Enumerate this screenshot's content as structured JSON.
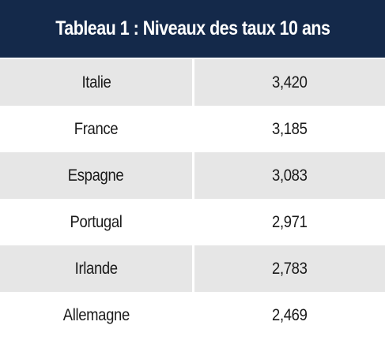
{
  "table": {
    "title": "Tableau 1 : Niveaux des taux 10 ans",
    "colors": {
      "header_bg": "#14294a",
      "header_text": "#ffffff",
      "row_shaded": "#e6e6e6",
      "row_plain": "#ffffff"
    },
    "rows": [
      {
        "country": "Italie",
        "value": "3,420"
      },
      {
        "country": "France",
        "value": "3,185"
      },
      {
        "country": "Espagne",
        "value": "3,083"
      },
      {
        "country": "Portugal",
        "value": "2,971"
      },
      {
        "country": "Irlande",
        "value": "2,783"
      },
      {
        "country": "Allemagne",
        "value": "2,469"
      }
    ]
  }
}
